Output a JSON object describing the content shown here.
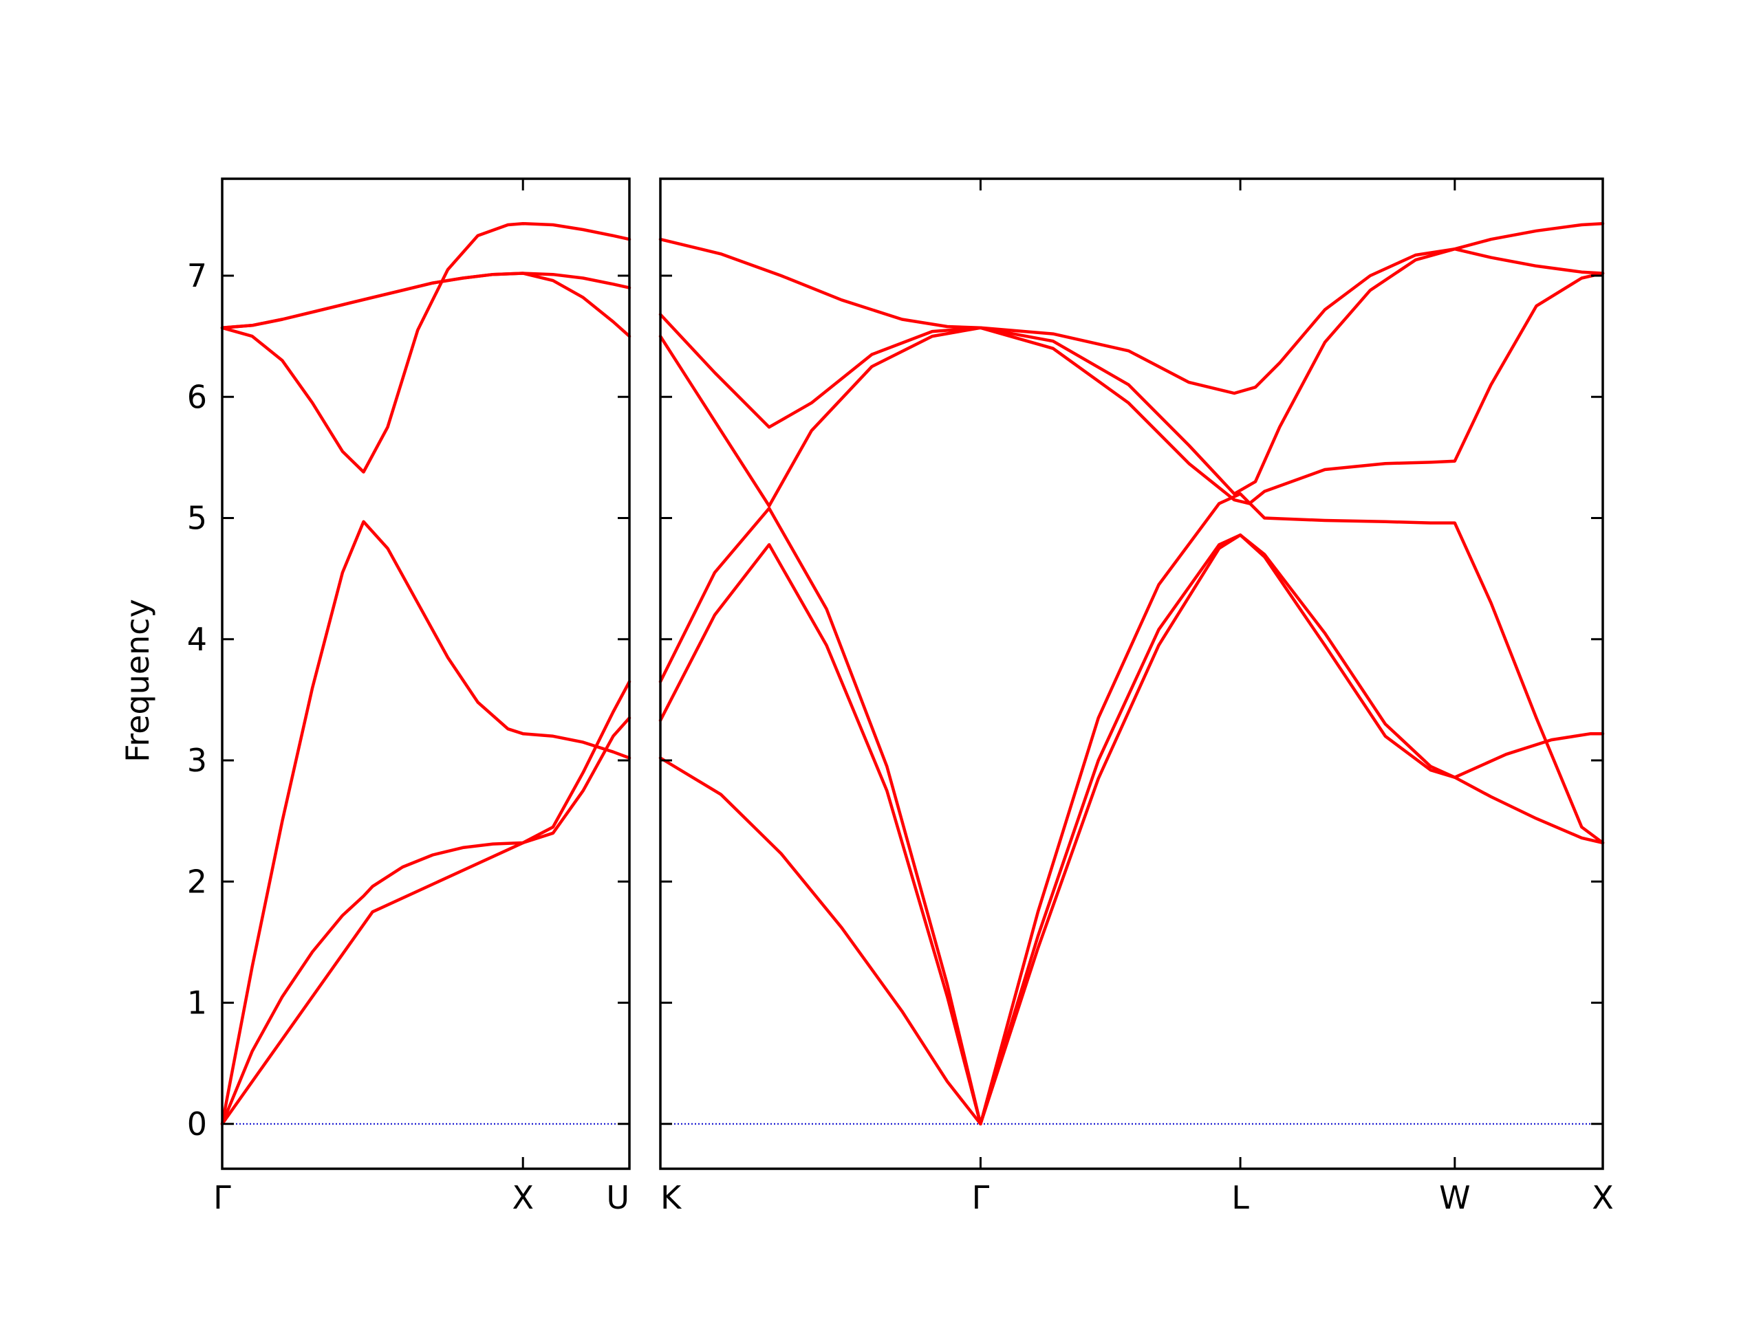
{
  "chart_data": {
    "type": "line",
    "ylabel": "Frequency",
    "ylim": [
      -0.37,
      7.8
    ],
    "yticks": [
      0,
      1,
      2,
      3,
      4,
      5,
      6,
      7
    ],
    "line_color": "#ff0000",
    "zero_line_color": "#0000cc",
    "panels": [
      {
        "xlim": [
          0,
          1.354
        ],
        "xticks": [
          {
            "x": 0,
            "label": "Γ"
          },
          {
            "x": 1.0,
            "label": "X"
          },
          {
            "x": 1.354,
            "label": "U"
          }
        ],
        "series": [
          {
            "x": [
              0,
              0.1,
              0.2,
              0.3,
              0.4,
              0.47,
              0.5,
              0.6,
              0.7,
              0.8,
              0.9,
              1.0,
              1.1,
              1.2,
              1.3,
              1.354
            ],
            "y": [
              0,
              0.6,
              1.05,
              1.42,
              1.72,
              1.88,
              1.96,
              2.12,
              2.22,
              2.28,
              2.31,
              2.32,
              2.4,
              2.75,
              3.2,
              3.35
            ]
          },
          {
            "x": [
              0,
              0.1,
              0.2,
              0.3,
              0.4,
              0.47,
              0.55,
              0.65,
              0.75,
              0.85,
              0.95,
              1.0,
              1.1,
              1.2,
              1.3,
              1.354
            ],
            "y": [
              0,
              1.3,
              2.5,
              3.6,
              4.55,
              4.97,
              4.75,
              4.3,
              3.85,
              3.48,
              3.26,
              3.22,
              3.2,
              3.15,
              3.07,
              3.02
            ]
          },
          {
            "x": [
              0,
              0.1,
              0.2,
              0.3,
              0.4,
              0.47,
              0.55,
              0.65,
              0.75,
              0.85,
              0.95,
              1.0,
              1.1,
              1.2,
              1.3,
              1.354
            ],
            "y": [
              6.57,
              6.5,
              6.3,
              5.95,
              5.55,
              5.38,
              5.75,
              6.55,
              7.05,
              7.33,
              7.42,
              7.43,
              7.42,
              7.38,
              7.33,
              7.3
            ]
          },
          {
            "x": [
              0,
              0.1,
              0.2,
              0.3,
              0.4,
              0.5,
              0.6,
              0.7,
              0.8,
              0.9,
              1.0,
              1.1,
              1.2,
              1.3,
              1.354
            ],
            "y": [
              6.57,
              6.59,
              6.64,
              6.7,
              6.76,
              6.82,
              6.88,
              6.94,
              6.98,
              7.01,
              7.02,
              7.01,
              6.98,
              6.93,
              6.9
            ]
          },
          {
            "x": [
              0,
              0.1,
              0.2,
              0.3,
              0.4,
              0.5,
              0.6,
              0.7,
              0.8,
              0.9,
              1.0,
              1.1,
              1.2,
              1.3,
              1.354
            ],
            "y": [
              6.57,
              6.59,
              6.64,
              6.7,
              6.76,
              6.82,
              6.88,
              6.94,
              6.98,
              7.01,
              7.02,
              6.96,
              6.82,
              6.62,
              6.5
            ]
          },
          {
            "x": [
              0,
              0.5,
              1.0,
              1.1,
              1.2,
              1.3,
              1.354
            ],
            "y": [
              0,
              1.75,
              2.32,
              2.45,
              2.9,
              3.4,
              3.65
            ]
          }
        ]
      },
      {
        "xlim": [
          0,
          3.12
        ],
        "xticks": [
          {
            "x": 0,
            "label": "K"
          },
          {
            "x": 1.06,
            "label": "Γ"
          },
          {
            "x": 1.92,
            "label": "L"
          },
          {
            "x": 2.63,
            "label": "W"
          },
          {
            "x": 3.12,
            "label": "X"
          }
        ],
        "series": [
          {
            "x": [
              0,
              0.2,
              0.4,
              0.6,
              0.8,
              0.95,
              1.06,
              1.25,
              1.45,
              1.65,
              1.85,
              1.92,
              2.0,
              2.2,
              2.4,
              2.55,
              2.63,
              2.75,
              2.9,
              3.05,
              3.12
            ],
            "y": [
              3.02,
              2.72,
              2.23,
              1.62,
              0.93,
              0.35,
              0,
              1.55,
              3.0,
              4.08,
              4.78,
              4.86,
              4.7,
              4.05,
              3.3,
              2.95,
              2.86,
              2.7,
              2.52,
              2.36,
              2.32
            ]
          },
          {
            "x": [
              0,
              0.18,
              0.36,
              0.55,
              0.75,
              0.95,
              1.06,
              1.25,
              1.45,
              1.65,
              1.85,
              1.92,
              2.0,
              2.2,
              2.4,
              2.55,
              2.63,
              2.8,
              2.95,
              3.08,
              3.12
            ],
            "y": [
              3.33,
              4.2,
              4.78,
              3.95,
              2.75,
              1.05,
              0,
              1.45,
              2.85,
              3.95,
              4.75,
              4.86,
              4.68,
              3.95,
              3.2,
              2.92,
              2.86,
              3.05,
              3.17,
              3.22,
              3.22
            ]
          },
          {
            "x": [
              0,
              0.18,
              0.36,
              0.55,
              0.75,
              0.95,
              1.06,
              1.25,
              1.45,
              1.65,
              1.85,
              1.92,
              2.0,
              2.2,
              2.4,
              2.55,
              2.63,
              2.75,
              2.9,
              3.05,
              3.12
            ],
            "y": [
              3.65,
              4.55,
              5.08,
              4.25,
              2.95,
              1.15,
              0,
              1.75,
              3.35,
              4.45,
              5.12,
              5.2,
              5.0,
              4.98,
              4.97,
              4.96,
              4.96,
              4.3,
              3.35,
              2.45,
              2.32
            ]
          },
          {
            "x": [
              0,
              0.18,
              0.36,
              0.5,
              0.7,
              0.9,
              1.06,
              1.3,
              1.55,
              1.75,
              1.9,
              1.95,
              2.0,
              2.2,
              2.4,
              2.55,
              2.63,
              2.75,
              2.9,
              3.05,
              3.12
            ],
            "y": [
              6.5,
              5.8,
              5.1,
              5.72,
              6.25,
              6.5,
              6.57,
              6.4,
              5.95,
              5.45,
              5.15,
              5.12,
              5.22,
              5.4,
              5.45,
              5.46,
              5.47,
              6.1,
              6.75,
              6.98,
              7.02
            ]
          },
          {
            "x": [
              0,
              0.18,
              0.36,
              0.5,
              0.7,
              0.9,
              1.06,
              1.3,
              1.55,
              1.75,
              1.9,
              1.97,
              2.05,
              2.2,
              2.35,
              2.5,
              2.63,
              2.75,
              2.9,
              3.05,
              3.12
            ],
            "y": [
              6.68,
              6.2,
              5.75,
              5.95,
              6.35,
              6.54,
              6.57,
              6.52,
              6.38,
              6.12,
              6.03,
              6.08,
              6.28,
              6.72,
              7.0,
              7.17,
              7.22,
              7.15,
              7.08,
              7.03,
              7.02
            ]
          },
          {
            "x": [
              0,
              0.2,
              0.4,
              0.6,
              0.8,
              0.95,
              1.06,
              1.3,
              1.55,
              1.75,
              1.9,
              1.97,
              2.05,
              2.2,
              2.35,
              2.5,
              2.63,
              2.75,
              2.9,
              3.05,
              3.12
            ],
            "y": [
              7.3,
              7.18,
              7.0,
              6.8,
              6.64,
              6.58,
              6.57,
              6.46,
              6.1,
              5.6,
              5.2,
              5.3,
              5.75,
              6.45,
              6.88,
              7.13,
              7.22,
              7.3,
              7.37,
              7.42,
              7.43
            ]
          }
        ]
      }
    ]
  }
}
